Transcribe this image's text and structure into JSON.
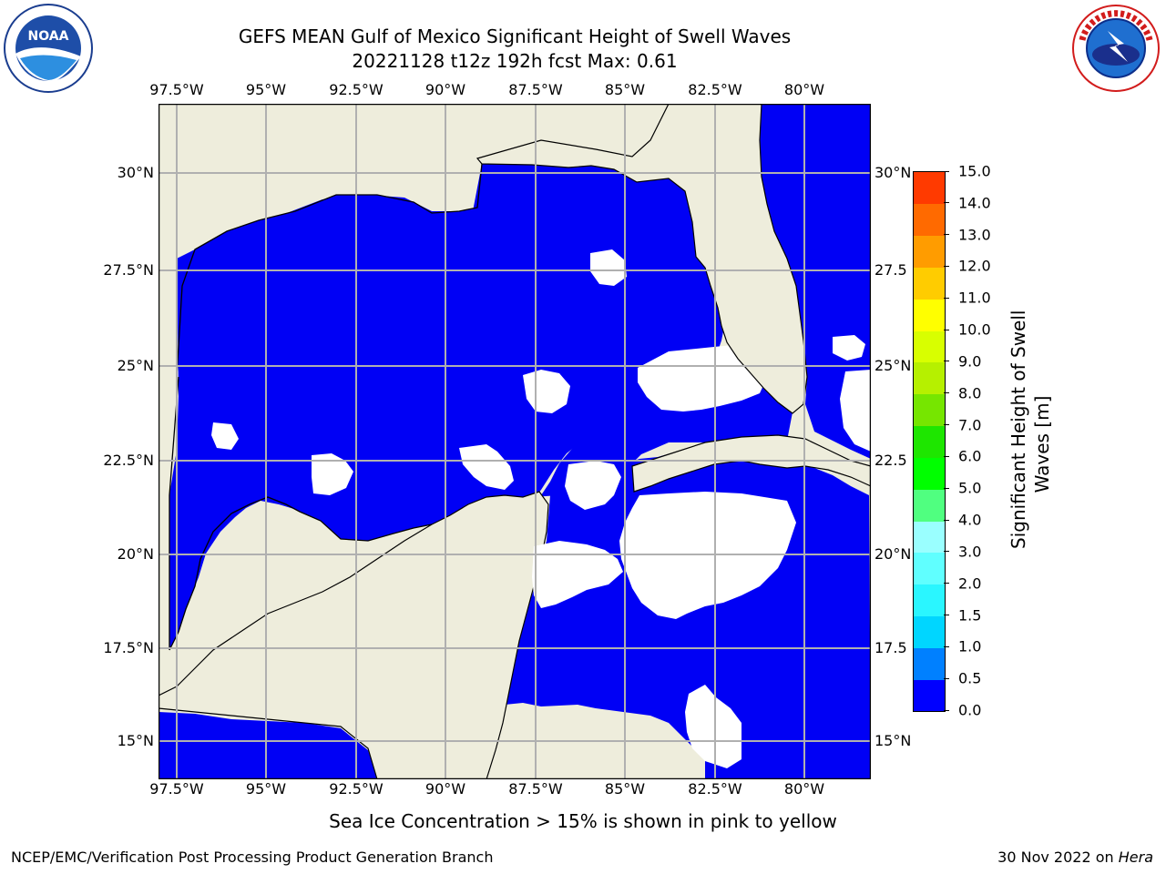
{
  "header": {
    "title_line1": "GEFS MEAN Gulf of Mexico Significant Height of Swell Waves",
    "title_line2": "20221128 t12z 192h fcst   Max: 0.61"
  },
  "logos": {
    "noaa_text": "NOAA",
    "noaa_ring_top": "NATIONAL OCEANIC AND ATMOSPHERIC ADMINISTRATION",
    "noaa_ring_bottom": "U.S. DEPARTMENT OF COMMERCE",
    "nws_ring": "NATIONAL WEATHER SERVICE"
  },
  "map": {
    "lon_labels": [
      "97.5°W",
      "95°W",
      "92.5°W",
      "90°W",
      "87.5°W",
      "85°W",
      "82.5°W",
      "80°W"
    ],
    "lat_labels": [
      "30°N",
      "27.5°N",
      "25°N",
      "22.5°N",
      "20°N",
      "17.5°N",
      "15°N"
    ],
    "lat_labels_right": [
      "30°N",
      "27.5",
      "25°N",
      "22.5",
      "20°N",
      "17.5",
      "15°N"
    ],
    "colors": {
      "land": "#eeeddc",
      "water": "#0000f5",
      "no_data": "#ffffff",
      "grid": "#b0b0b0"
    }
  },
  "colorbar": {
    "label_line1": "Significant Height of Swell",
    "label_line2": "Waves [m]",
    "ticks": [
      "0.0",
      "0.5",
      "1.0",
      "1.5",
      "2.0",
      "3.0",
      "4.0",
      "5.0",
      "6.0",
      "7.0",
      "8.0",
      "9.0",
      "10.0",
      "11.0",
      "12.0",
      "13.0",
      "14.0",
      "15.0"
    ],
    "colors": [
      "#0000ff",
      "#0080ff",
      "#00d6ff",
      "#2af6ff",
      "#60ffff",
      "#9affff",
      "#50ff80",
      "#00ff00",
      "#1ee600",
      "#76e600",
      "#b6f000",
      "#d8ff00",
      "#ffff00",
      "#ffcc00",
      "#ff9c00",
      "#ff6a00",
      "#ff3a00",
      "#ff0000"
    ]
  },
  "caption": "Sea Ice Concentration > 15% is shown in pink to yellow",
  "footer": {
    "left": "NCEP/EMC/Verification Post Processing Product Generation Branch",
    "date": "30 Nov 2022 on ",
    "host": "Hera"
  }
}
